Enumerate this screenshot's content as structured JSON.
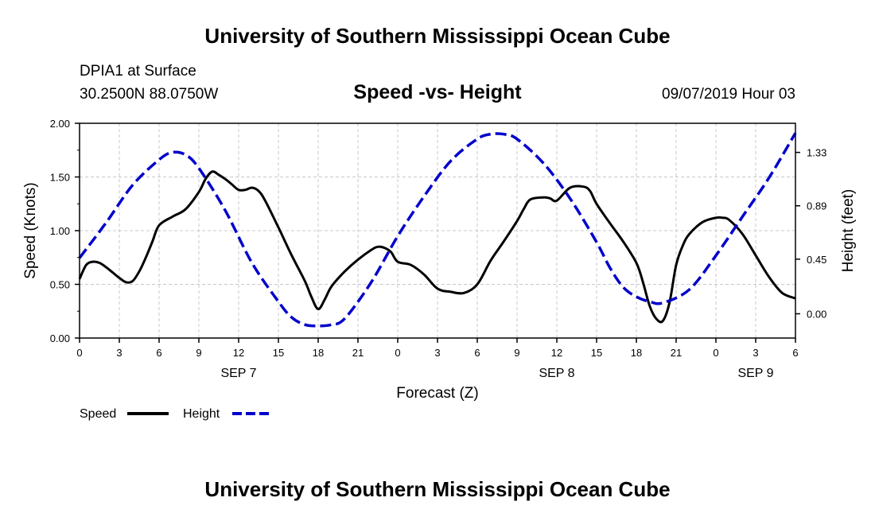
{
  "header": {
    "title": "University of Southern Mississippi Ocean Cube",
    "station": "DPIA1 at Surface",
    "coords": "30.2500N 88.0750W",
    "chart_title": "Speed -vs- Height",
    "datetime": "09/07/2019 Hour 03"
  },
  "footer": {
    "title": "University of Southern Mississippi Ocean Cube"
  },
  "colors": {
    "speed": "#000000",
    "height": "#0000cc"
  },
  "chart_data": {
    "type": "line",
    "title": "Speed -vs- Height",
    "xlabel": "Forecast (Z)",
    "ylabel": "Speed (Knots)",
    "y2label": "Height (feet)",
    "x_unit": "forecast hours from SEP 7 00Z",
    "xlim": [
      0,
      54
    ],
    "ylim": [
      0,
      2
    ],
    "y2lim": [
      -0.2,
      1.57
    ],
    "x_ticks": [
      0,
      3,
      6,
      9,
      12,
      15,
      18,
      21,
      24,
      27,
      30,
      33,
      36,
      39,
      42,
      45,
      48,
      51,
      54
    ],
    "x_tick_labels": [
      "0",
      "3",
      "6",
      "9",
      "12",
      "15",
      "18",
      "21",
      "0",
      "3",
      "6",
      "9",
      "12",
      "15",
      "18",
      "21",
      "0",
      "3",
      "6"
    ],
    "day_labels": [
      {
        "x": 12,
        "label": "SEP 7"
      },
      {
        "x": 36,
        "label": "SEP 8"
      },
      {
        "x": 51,
        "label": "SEP 9"
      }
    ],
    "y_ticks": [
      0,
      0.5,
      1.0,
      1.5,
      2.0
    ],
    "y_tick_labels": [
      "0.00",
      "0.50",
      "1.00",
      "1.50",
      "2.00"
    ],
    "y2_ticks": [
      0,
      0.45,
      0.89,
      1.33
    ],
    "y2_tick_labels": [
      "0.00",
      "0.45",
      "0.89",
      "1.33"
    ],
    "grid": true,
    "legend": [
      "Speed",
      "Height"
    ],
    "legend_position": "bottom-left",
    "series": [
      {
        "name": "Speed",
        "axis": "left",
        "style": "solid",
        "x": [
          0,
          0.5,
          1,
          1.5,
          2,
          2.5,
          3,
          3.5,
          4,
          4.5,
          5,
          5.5,
          6,
          7,
          8,
          9,
          9.5,
          10,
          10.5,
          11,
          11.5,
          12,
          12.5,
          13,
          13.5,
          14,
          15,
          16,
          17,
          17.5,
          18,
          18.5,
          19,
          20,
          21,
          22,
          22.5,
          23,
          23.5,
          24,
          25,
          26,
          27,
          28,
          29,
          30,
          31,
          32,
          33,
          33.5,
          34,
          35,
          35.5,
          36,
          37,
          38,
          38.5,
          39,
          40,
          41,
          42,
          42.5,
          43,
          43.5,
          44,
          44.5,
          45,
          45.5,
          46,
          47,
          48,
          48.5,
          49,
          50,
          51,
          52,
          53,
          54
        ],
        "y": [
          0.55,
          0.68,
          0.71,
          0.7,
          0.66,
          0.61,
          0.56,
          0.52,
          0.53,
          0.62,
          0.75,
          0.9,
          1.05,
          1.13,
          1.2,
          1.36,
          1.48,
          1.55,
          1.52,
          1.48,
          1.43,
          1.38,
          1.38,
          1.4,
          1.37,
          1.28,
          1.03,
          0.77,
          0.53,
          0.38,
          0.27,
          0.36,
          0.48,
          0.62,
          0.73,
          0.82,
          0.85,
          0.84,
          0.8,
          0.71,
          0.68,
          0.59,
          0.46,
          0.43,
          0.42,
          0.5,
          0.72,
          0.9,
          1.09,
          1.2,
          1.29,
          1.31,
          1.3,
          1.28,
          1.4,
          1.41,
          1.37,
          1.25,
          1.07,
          0.9,
          0.7,
          0.52,
          0.3,
          0.18,
          0.16,
          0.33,
          0.68,
          0.86,
          0.97,
          1.08,
          1.12,
          1.12,
          1.1,
          0.97,
          0.77,
          0.57,
          0.42,
          0.37
        ]
      },
      {
        "name": "Height",
        "axis": "right",
        "style": "dashed",
        "x": [
          0,
          2,
          4,
          6,
          7,
          8,
          9,
          11,
          13,
          15,
          16,
          17,
          18,
          19,
          20,
          22,
          24,
          26,
          28,
          30,
          31,
          32,
          33,
          35,
          37,
          39,
          40,
          41,
          42,
          43,
          44,
          46,
          48,
          50,
          52,
          54
        ],
        "y": [
          0.46,
          0.75,
          1.06,
          1.27,
          1.33,
          1.31,
          1.2,
          0.85,
          0.42,
          0.1,
          -0.03,
          -0.09,
          -0.1,
          -0.09,
          -0.04,
          0.26,
          0.64,
          0.97,
          1.26,
          1.44,
          1.48,
          1.48,
          1.44,
          1.24,
          0.95,
          0.59,
          0.38,
          0.22,
          0.14,
          0.1,
          0.09,
          0.2,
          0.48,
          0.8,
          1.12,
          1.49
        ]
      }
    ]
  }
}
